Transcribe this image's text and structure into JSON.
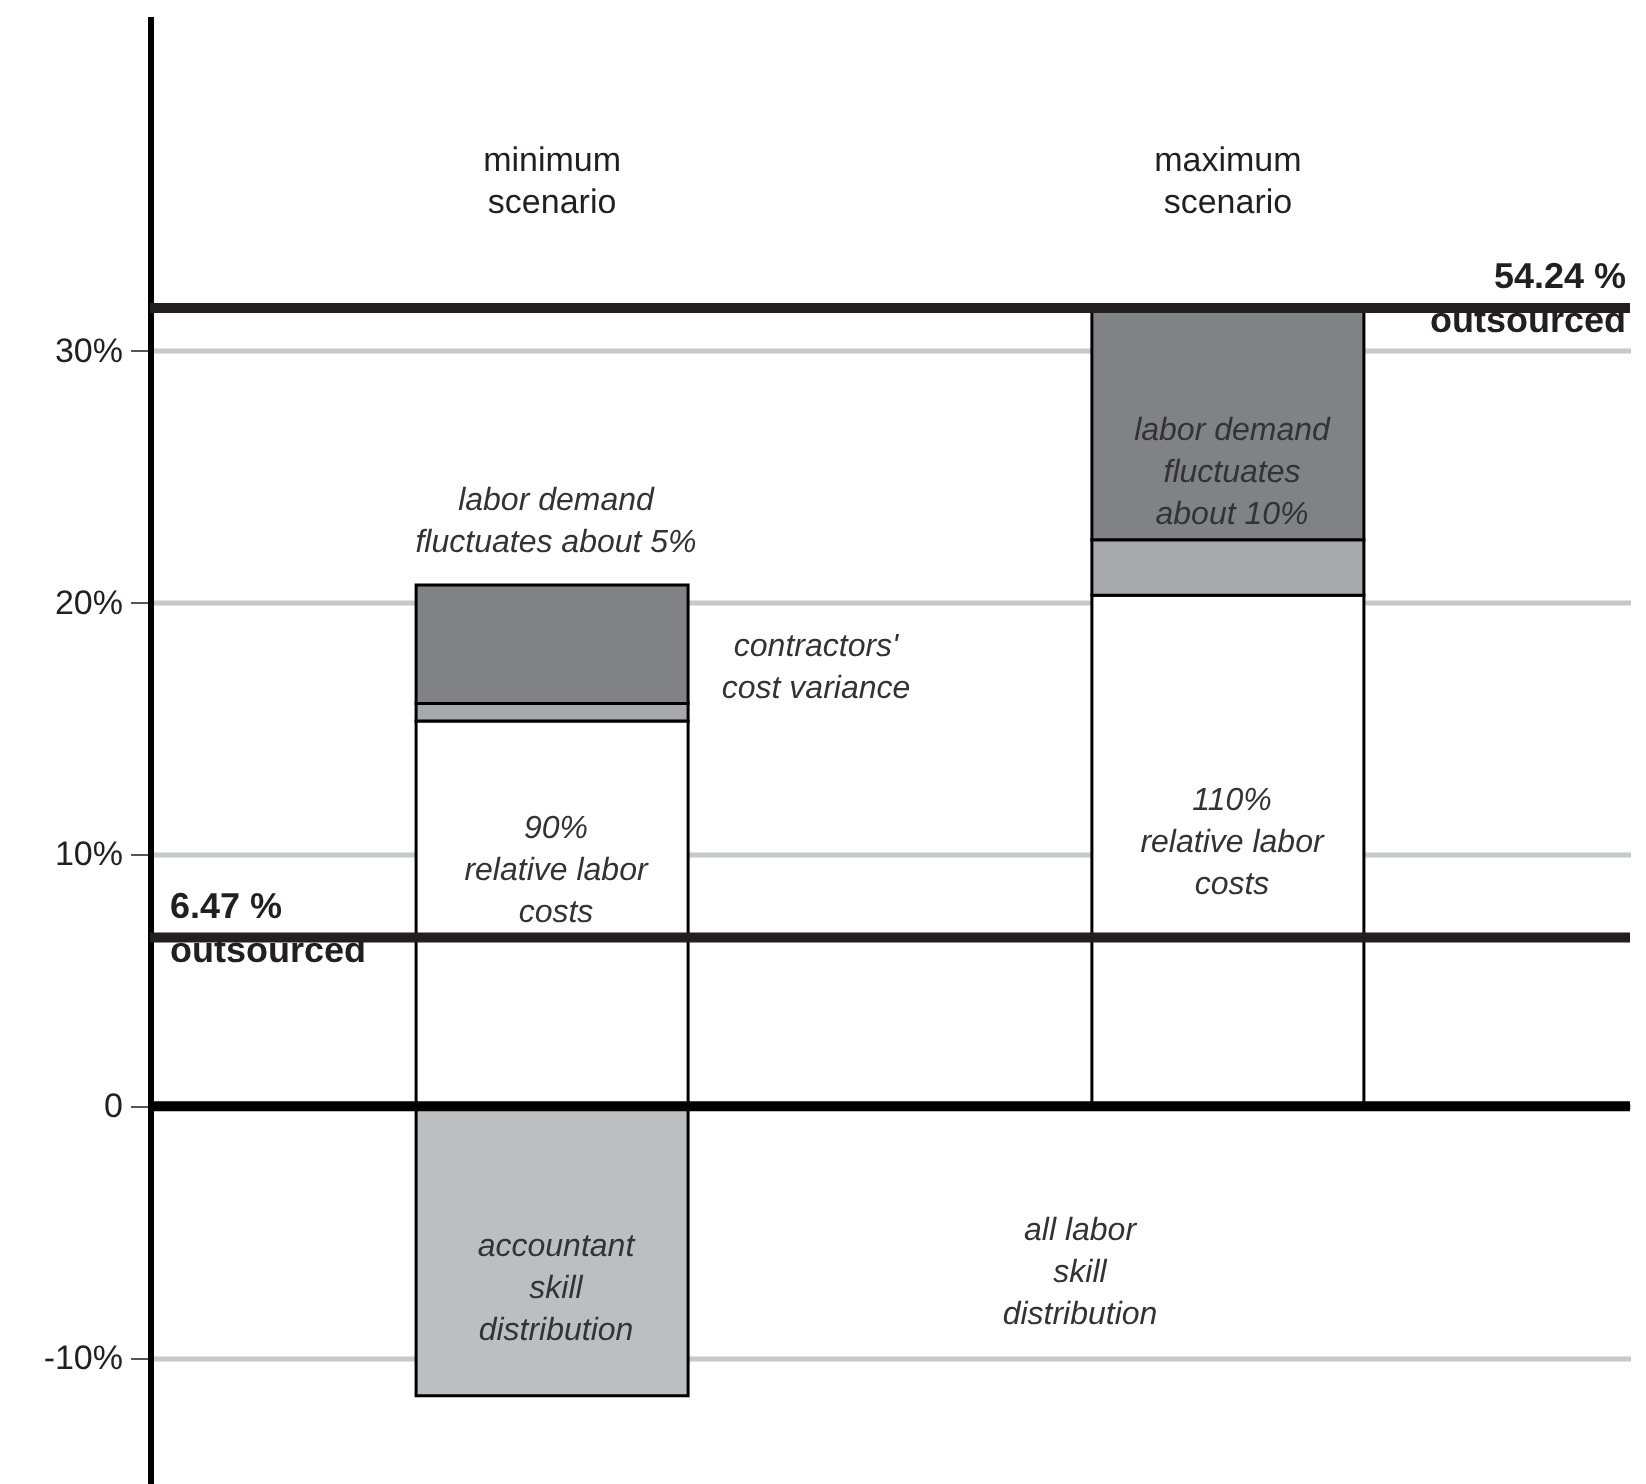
{
  "chart_data": {
    "type": "bar",
    "stacked": true,
    "categories": [
      "minimum scenario",
      "maximum scenario"
    ],
    "series": [
      {
        "color": "#bcbec0",
        "values": [
          -11.5,
          null
        ]
      },
      {
        "color": "#ffffff",
        "values": [
          15.3,
          20.3
        ]
      },
      {
        "color": "#a7a9ac",
        "values": [
          0.7,
          2.2
        ]
      },
      {
        "color": "#808285",
        "values": [
          4.7,
          9.2
        ]
      }
    ],
    "ylim": [
      -15,
      43.3
    ],
    "yticks": [
      {
        "value": -10,
        "label": "-10%"
      },
      0,
      {
        "value": 10,
        "label": "10%"
      },
      {
        "value": 20,
        "label": "20%"
      },
      {
        "value": 30,
        "label": "30%"
      }
    ],
    "grid": "y",
    "ref_lines": [
      {
        "axis": "y",
        "value": 0,
        "color": "#000000"
      },
      {
        "axis": "y",
        "value": 6.7,
        "label": "6.47 %\noutsourced",
        "color": "#231f20"
      },
      {
        "axis": "y",
        "value": 31.7,
        "label": "54.24 %\noutsourced",
        "color": "#231f20"
      }
    ],
    "annotations": [
      "labor demand\nfluctuates about 5%",
      "contractors'\ncost variance",
      "90%\nrelative labor\ncosts",
      "accountant\nskill\ndistribution",
      "labor demand\nfluctuates\nabout 10%",
      "110%\nrelative labor\ncosts",
      "all labor\nskill\ndistribution"
    ]
  }
}
